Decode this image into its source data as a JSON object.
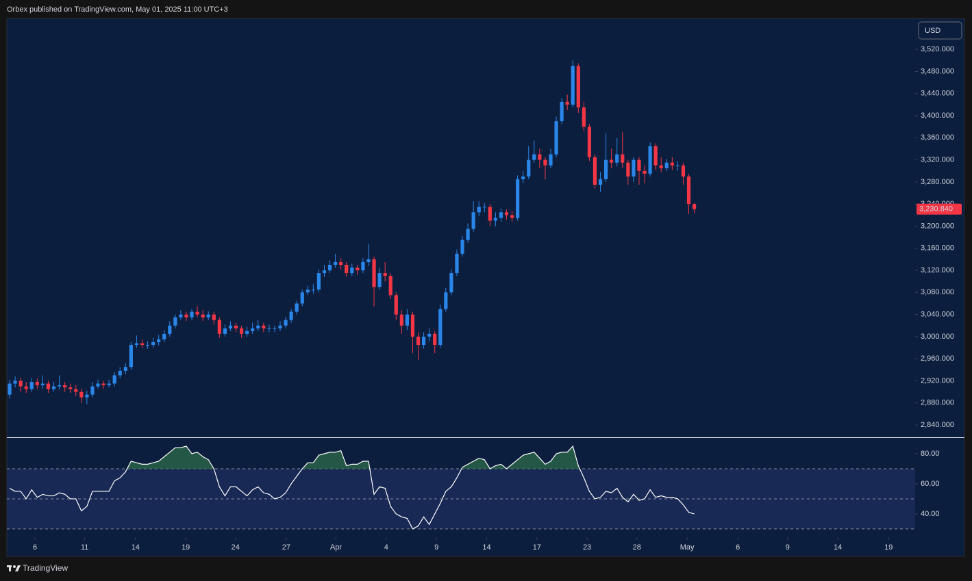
{
  "header": {
    "publisher": "Orbex published on TradingView.com, May 01, 2025 11:00 UTC+3",
    "currency": "USD",
    "brand": "TradingView"
  },
  "chart_data": [
    {
      "type": "candlestick",
      "up_color": "#2a86e8",
      "down_color": "#f23645",
      "open": [
        2895,
        2915,
        2920,
        2910,
        2905,
        2918,
        2912,
        2915,
        2905,
        2910,
        2912,
        2908,
        2905,
        2900,
        2890,
        2895,
        2910,
        2915,
        2912,
        2915,
        2930,
        2938,
        2945,
        2985,
        2988,
        2985,
        2985,
        2990,
        2995,
        3005,
        3020,
        3035,
        3040,
        3035,
        3045,
        3040,
        3035,
        3040,
        3030,
        3005,
        3015,
        3020,
        3015,
        3005,
        3010,
        3015,
        3020,
        3015,
        3015,
        3015,
        3020,
        3030,
        3045,
        3060,
        3080,
        3085,
        3085,
        3115,
        3120,
        3130,
        3135,
        3130,
        3115,
        3125,
        3120,
        3135,
        3140,
        3090,
        3115,
        3110,
        3075,
        3040,
        3020,
        3040,
        3000,
        2985,
        3000,
        3005,
        2985,
        3050,
        3080,
        3115,
        3150,
        3175,
        3195,
        3225,
        3235,
        3235,
        3210,
        3215,
        3225,
        3220,
        3215,
        3285,
        3290,
        3320,
        3330,
        3320,
        3310,
        3330,
        3390,
        3425,
        3420,
        3490,
        3415,
        3380,
        3325,
        3275,
        3285,
        3320,
        3315,
        3330,
        3315,
        3290,
        3320,
        3300,
        3295,
        3345,
        3310,
        3305,
        3315,
        3310,
        3310,
        3290,
        3240
      ],
      "high": [
        2922,
        2928,
        2926,
        2918,
        2925,
        2924,
        2930,
        2920,
        2918,
        2930,
        2918,
        2915,
        2912,
        2906,
        2902,
        2918,
        2922,
        2920,
        2922,
        2936,
        2945,
        2952,
        2990,
        3002,
        2995,
        2992,
        2998,
        3003,
        3012,
        3028,
        3040,
        3048,
        3045,
        3050,
        3055,
        3048,
        3046,
        3045,
        3035,
        3022,
        3028,
        3025,
        3020,
        3018,
        3025,
        3030,
        3025,
        3022,
        3020,
        3028,
        3036,
        3050,
        3065,
        3085,
        3092,
        3095,
        3122,
        3130,
        3138,
        3150,
        3142,
        3135,
        3132,
        3130,
        3142,
        3168,
        3145,
        3125,
        3135,
        3115,
        3080,
        3048,
        3050,
        3045,
        3008,
        3008,
        3015,
        3010,
        3058,
        3088,
        3122,
        3158,
        3182,
        3205,
        3245,
        3245,
        3242,
        3240,
        3225,
        3232,
        3230,
        3228,
        3292,
        3300,
        3345,
        3355,
        3340,
        3325,
        3340,
        3398,
        3432,
        3438,
        3500,
        3495,
        3425,
        3385,
        3330,
        3298,
        3368,
        3340,
        3360,
        3370,
        3320,
        3325,
        3325,
        3310,
        3352,
        3350,
        3325,
        3322,
        3325,
        3318,
        3315,
        3295,
        3242
      ],
      "low": [
        2888,
        2908,
        2900,
        2898,
        2900,
        2905,
        2906,
        2898,
        2900,
        2904,
        2900,
        2898,
        2892,
        2880,
        2878,
        2890,
        2906,
        2906,
        2908,
        2910,
        2925,
        2932,
        2940,
        2980,
        2980,
        2978,
        2980,
        2984,
        2990,
        3000,
        3015,
        3030,
        3028,
        3030,
        3035,
        3028,
        3030,
        3022,
        2998,
        3000,
        3010,
        3008,
        2998,
        3000,
        3005,
        3010,
        3008,
        3008,
        3008,
        3010,
        3015,
        3025,
        3040,
        3055,
        3075,
        3078,
        3080,
        3108,
        3115,
        3125,
        3122,
        3108,
        3110,
        3112,
        3115,
        3128,
        3055,
        3085,
        3100,
        3068,
        3030,
        3005,
        3012,
        2970,
        2958,
        2978,
        2992,
        2970,
        2980,
        3045,
        3075,
        3110,
        3145,
        3170,
        3190,
        3218,
        3225,
        3200,
        3200,
        3208,
        3212,
        3208,
        3210,
        3278,
        3285,
        3315,
        3305,
        3285,
        3305,
        3325,
        3385,
        3410,
        3415,
        3405,
        3372,
        3318,
        3268,
        3262,
        3280,
        3305,
        3308,
        3305,
        3275,
        3280,
        3275,
        3278,
        3290,
        3302,
        3298,
        3300,
        3302,
        3300,
        3275,
        3222,
        3224
      ],
      "close": [
        2915,
        2920,
        2910,
        2905,
        2918,
        2912,
        2915,
        2905,
        2910,
        2912,
        2908,
        2905,
        2900,
        2890,
        2895,
        2910,
        2915,
        2912,
        2915,
        2930,
        2938,
        2945,
        2985,
        2988,
        2985,
        2985,
        2990,
        2995,
        3005,
        3020,
        3035,
        3040,
        3035,
        3045,
        3040,
        3035,
        3040,
        3030,
        3005,
        3015,
        3020,
        3015,
        3005,
        3010,
        3015,
        3020,
        3015,
        3015,
        3015,
        3020,
        3030,
        3045,
        3060,
        3080,
        3085,
        3085,
        3115,
        3120,
        3130,
        3135,
        3130,
        3115,
        3125,
        3120,
        3135,
        3140,
        3090,
        3115,
        3110,
        3075,
        3040,
        3020,
        3040,
        3000,
        2985,
        3000,
        3005,
        2985,
        3050,
        3080,
        3115,
        3150,
        3175,
        3195,
        3225,
        3235,
        3235,
        3210,
        3215,
        3225,
        3220,
        3215,
        3285,
        3290,
        3320,
        3330,
        3320,
        3310,
        3330,
        3390,
        3425,
        3420,
        3490,
        3415,
        3380,
        3325,
        3275,
        3285,
        3320,
        3315,
        3330,
        3315,
        3290,
        3320,
        3300,
        3295,
        3345,
        3310,
        3305,
        3315,
        3310,
        3310,
        3290,
        3240,
        3230.84
      ],
      "last_price": {
        "value": 3230.84,
        "label": "3,230.840"
      },
      "ylim": [
        2819,
        3576
      ],
      "yticks": [
        {
          "value": 3520,
          "label": "3,520.000"
        },
        {
          "value": 3480,
          "label": "3,480.000"
        },
        {
          "value": 3440,
          "label": "3,440.000"
        },
        {
          "value": 3400,
          "label": "3,400.000"
        },
        {
          "value": 3360,
          "label": "3,360.000"
        },
        {
          "value": 3320,
          "label": "3,320.000"
        },
        {
          "value": 3280,
          "label": "3,280.000"
        },
        {
          "value": 3240,
          "label": "3,240.000"
        },
        {
          "value": 3200,
          "label": "3,200.000"
        },
        {
          "value": 3160,
          "label": "3,160.000"
        },
        {
          "value": 3120,
          "label": "3,120.000"
        },
        {
          "value": 3080,
          "label": "3,080.000"
        },
        {
          "value": 3040,
          "label": "3,040.000"
        },
        {
          "value": 3000,
          "label": "3,000.000"
        },
        {
          "value": 2960,
          "label": "2,960.000"
        },
        {
          "value": 2920,
          "label": "2,920.000"
        },
        {
          "value": 2880,
          "label": "2,880.000"
        },
        {
          "value": 2840,
          "label": "2,840.000"
        }
      ],
      "xlim": [
        -0.5,
        164
      ],
      "xticks": [
        {
          "value": 4.6,
          "label": "6"
        },
        {
          "value": 13.6,
          "label": "11"
        },
        {
          "value": 22.8,
          "label": "14"
        },
        {
          "value": 31.9,
          "label": "19"
        },
        {
          "value": 40.9,
          "label": "24"
        },
        {
          "value": 50.1,
          "label": "27"
        },
        {
          "value": 59.1,
          "label": "Apr"
        },
        {
          "value": 68.2,
          "label": "4"
        },
        {
          "value": 77.3,
          "label": "9"
        },
        {
          "value": 86.4,
          "label": "14"
        },
        {
          "value": 95.5,
          "label": "17"
        },
        {
          "value": 104.6,
          "label": "23"
        },
        {
          "value": 113.6,
          "label": "28"
        },
        {
          "value": 122.7,
          "label": "May"
        },
        {
          "value": 131.9,
          "label": "6"
        },
        {
          "value": 140.9,
          "label": "9"
        },
        {
          "value": 150,
          "label": "14"
        },
        {
          "value": 159.2,
          "label": "19"
        }
      ]
    },
    {
      "type": "line",
      "color": "#ffffff",
      "values": [
        57,
        55,
        55,
        50,
        56,
        51,
        53,
        52,
        52,
        54,
        53,
        50,
        50,
        42,
        45,
        55,
        55,
        55,
        55,
        62,
        64,
        68,
        75,
        74,
        73,
        73,
        74,
        75,
        78,
        81,
        84,
        84,
        85,
        80,
        81,
        78,
        76,
        70,
        58,
        52,
        58,
        58,
        55,
        52,
        56,
        58,
        54,
        53,
        50,
        51,
        54,
        60,
        65,
        70,
        74,
        74,
        79,
        80,
        81,
        81,
        82,
        72,
        73,
        73,
        75,
        75,
        53,
        58,
        57,
        45,
        40,
        38,
        37,
        30,
        32,
        38,
        33,
        40,
        47,
        55,
        58,
        64,
        71,
        73,
        75,
        77,
        76,
        70,
        72,
        73,
        70,
        73,
        76,
        79,
        80,
        81,
        77,
        73,
        75,
        80,
        81,
        81,
        85,
        72,
        64,
        55,
        50,
        51,
        55,
        54,
        57,
        51,
        48,
        53,
        49,
        50,
        56,
        51,
        52,
        51,
        51,
        50,
        46,
        41,
        40
      ],
      "levels": [
        70,
        50,
        30
      ],
      "ylim": [
        24.5,
        90
      ],
      "yticks": [
        {
          "value": 80,
          "label": "80.00"
        },
        {
          "value": 60,
          "label": "60.00"
        },
        {
          "value": 40,
          "label": "40.00"
        }
      ],
      "xlim": [
        -0.5,
        164
      ]
    }
  ]
}
